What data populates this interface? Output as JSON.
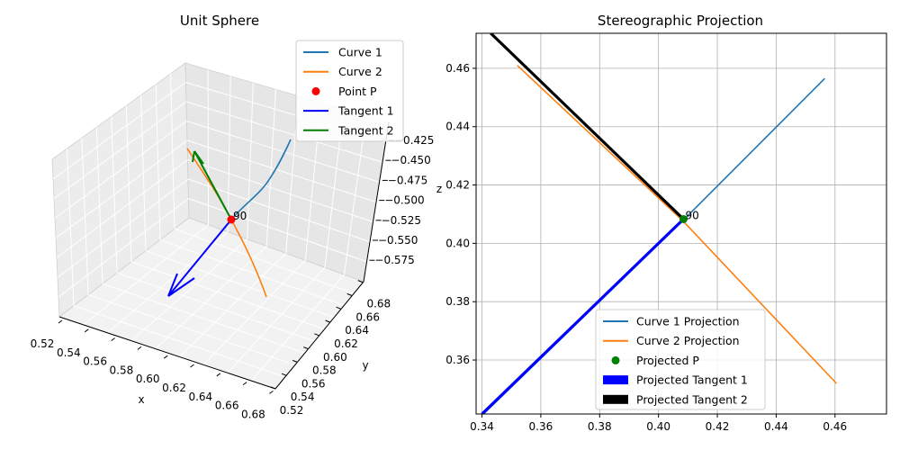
{
  "left_panel": {
    "title": "Unit Sphere",
    "xlabel": "x",
    "ylabel": "y",
    "zlabel": "z",
    "x_ticks": [
      "0.52",
      "0.54",
      "0.56",
      "0.58",
      "0.60",
      "0.62",
      "0.64",
      "0.66",
      "0.68"
    ],
    "y_ticks": [
      "0.52",
      "0.54",
      "0.56",
      "0.58",
      "0.60",
      "0.62",
      "0.64",
      "0.66",
      "0.68"
    ],
    "z_ticks": [
      "−0.425",
      "−0.450",
      "−0.475",
      "−0.500",
      "−0.525",
      "−0.550",
      "−0.575"
    ],
    "point_label": "90",
    "legend": [
      {
        "label": "Curve 1",
        "kind": "line",
        "color": "#1f77b4"
      },
      {
        "label": "Curve 2",
        "kind": "line",
        "color": "#ff7f0e"
      },
      {
        "label": "Point P",
        "kind": "dot",
        "color": "#ff0000"
      },
      {
        "label": "Tangent 1",
        "kind": "line",
        "color": "#0000ff"
      },
      {
        "label": "Tangent 2",
        "kind": "line",
        "color": "#008000"
      }
    ]
  },
  "chart_data": [
    {
      "type": "line",
      "title": "Unit Sphere",
      "projection": "3d",
      "xlabel": "x",
      "ylabel": "y",
      "zlabel": "z",
      "xlim": [
        0.52,
        0.69
      ],
      "ylim": [
        0.52,
        0.69
      ],
      "zlim": [
        -0.585,
        -0.415
      ],
      "series": [
        {
          "name": "Curve 1",
          "color": "#1f77b4"
        },
        {
          "name": "Curve 2",
          "color": "#ff7f0e"
        },
        {
          "name": "Point P",
          "color": "#ff0000"
        },
        {
          "name": "Tangent 1",
          "color": "#0000ff"
        },
        {
          "name": "Tangent 2",
          "color": "#008000"
        }
      ],
      "annotations": [
        "90"
      ],
      "legend_position": "upper right"
    },
    {
      "type": "line",
      "title": "Stereographic Projection",
      "xlim": [
        0.338,
        0.4775
      ],
      "ylim": [
        0.3415,
        0.472
      ],
      "x_ticks": [
        0.34,
        0.36,
        0.38,
        0.4,
        0.42,
        0.44,
        0.46
      ],
      "y_ticks": [
        0.36,
        0.38,
        0.4,
        0.42,
        0.44,
        0.46
      ],
      "grid": true,
      "legend_position": "lower center",
      "series": [
        {
          "name": "Curve 1 Projection",
          "kind": "line",
          "color": "#1f77b4",
          "points": [
            [
              0.3405,
              0.3415
            ],
            [
              0.4085,
              0.408
            ],
            [
              0.4565,
              0.4565
            ]
          ]
        },
        {
          "name": "Curve 2 Projection",
          "kind": "line",
          "color": "#ff7f0e",
          "points": [
            [
              0.352,
              0.461
            ],
            [
              0.408,
              0.408
            ],
            [
              0.4605,
              0.352
            ]
          ]
        },
        {
          "name": "Projected P",
          "kind": "scatter",
          "color": "#008000",
          "points": [
            [
              0.4085,
              0.4083
            ]
          ]
        },
        {
          "name": "Projected Tangent 1",
          "kind": "arrow",
          "color": "#0000ff",
          "from": [
            0.4085,
            0.4083
          ],
          "to": [
            0.34,
            0.3415
          ]
        },
        {
          "name": "Projected Tangent 2",
          "kind": "arrow",
          "color": "#000000",
          "from": [
            0.4085,
            0.4083
          ],
          "to": [
            0.343,
            0.472
          ]
        }
      ],
      "annotations": [
        {
          "text": "90",
          "x": 0.4085,
          "y": 0.4083
        }
      ]
    }
  ]
}
